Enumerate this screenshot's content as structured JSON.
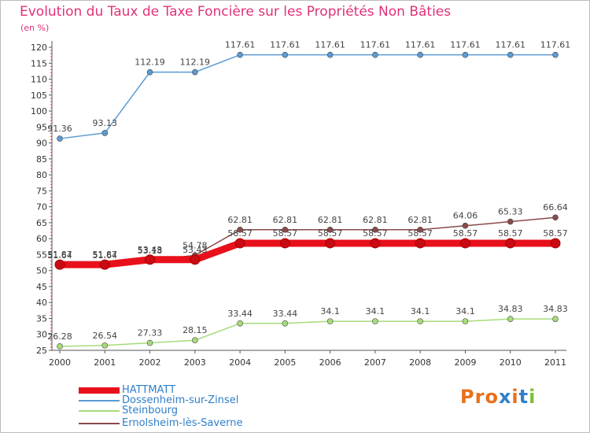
{
  "title": "Evolution du Taux de Taxe Foncière sur les Propriétés Non Bâties",
  "unit_label": "(en %)",
  "logo": {
    "text": "Proxiti",
    "colors": [
      "#e8701a",
      "#e8701a",
      "#e8701a",
      "#2f7fc9",
      "#e8701a",
      "#2f7fc9",
      "#7bbf3a"
    ]
  },
  "chart_data": {
    "type": "line",
    "x": [
      "2000",
      "2001",
      "2002",
      "2003",
      "2004",
      "2005",
      "2006",
      "2007",
      "2008",
      "2009",
      "2010",
      "2011"
    ],
    "ylim": [
      25,
      120
    ],
    "yticks": [
      25,
      30,
      35,
      40,
      45,
      50,
      55,
      60,
      65,
      70,
      75,
      80,
      85,
      90,
      95,
      100,
      105,
      110,
      115,
      120
    ],
    "grid": false,
    "legend_position": "bottom-left",
    "series": [
      {
        "name": "HATTMATT",
        "color": "#e8101a",
        "values": [
          51.87,
          51.87,
          53.43,
          53.43,
          58.57,
          58.57,
          58.57,
          58.57,
          58.57,
          58.57,
          58.57,
          58.57
        ],
        "labels": [
          "51.87",
          "51.87",
          "53.43",
          "53.43",
          "58.57",
          "58.57",
          "58.57",
          "58.57",
          "58.57",
          "58.57",
          "58.57",
          "58.57"
        ]
      },
      {
        "name": "Dossenheim-sur-Zinsel",
        "color": "#5b9bd5",
        "values": [
          91.36,
          93.13,
          112.19,
          112.19,
          117.61,
          117.61,
          117.61,
          117.61,
          117.61,
          117.61,
          117.61,
          117.61
        ],
        "labels": [
          "91.36",
          "93.13",
          "112.19",
          "112.19",
          "117.61",
          "117.61",
          "117.61",
          "117.61",
          "117.61",
          "117.61",
          "117.61",
          "117.61"
        ]
      },
      {
        "name": "Steinbourg",
        "color": "#a6dc7a",
        "values": [
          26.28,
          26.54,
          27.33,
          28.15,
          33.44,
          33.44,
          34.1,
          34.1,
          34.1,
          34.1,
          34.83,
          34.83
        ],
        "labels": [
          "26.28",
          "26.54",
          "27.33",
          "28.15",
          "33.44",
          "33.44",
          "34.1",
          "34.1",
          "34.1",
          "34.1",
          "34.83",
          "34.83"
        ]
      },
      {
        "name": "Ernolsheim-lès-Saverne",
        "color": "#8b4a4a",
        "values": [
          51.64,
          51.64,
          53.18,
          54.78,
          62.81,
          62.81,
          62.81,
          62.81,
          62.81,
          64.06,
          65.33,
          66.64
        ],
        "labels": [
          "51.64",
          "51.64",
          "53.18",
          "54.78",
          "62.81",
          "62.81",
          "62.81",
          "62.81",
          "62.81",
          "64.06",
          "65.33",
          "66.64"
        ]
      }
    ]
  }
}
